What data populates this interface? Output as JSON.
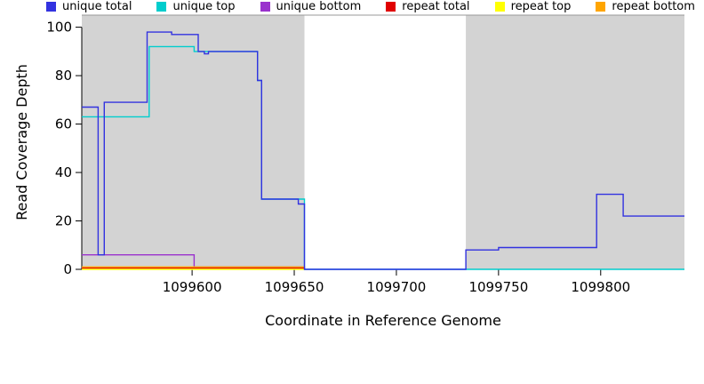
{
  "chart_data": {
    "type": "line",
    "line_style": "step",
    "title": "",
    "xlabel": "Coordinate in Reference Genome",
    "ylabel": "Read Coverage Depth",
    "xlim": [
      1099546,
      1099841
    ],
    "ylim": [
      0,
      105
    ],
    "x_ticks": [
      1099600,
      1099650,
      1099700,
      1099750,
      1099800
    ],
    "y_ticks": [
      0,
      20,
      40,
      60,
      80,
      100
    ],
    "grid": false,
    "background": "#ffffff",
    "panel_top_border_color": "#999999",
    "panel_regions": [
      {
        "from": 1099546,
        "to": 1099655,
        "color": "#d3d3d3"
      },
      {
        "from": 1099734,
        "to": 1099841,
        "color": "#d3d3d3"
      }
    ],
    "gap_region": {
      "from": 1099655,
      "to": 1099734,
      "color": "#ffffff"
    },
    "series": [
      {
        "name": "unique top",
        "color": "#00CDCD",
        "points": [
          [
            1099546,
            63
          ],
          [
            1099579,
            63
          ],
          [
            1099579,
            92
          ],
          [
            1099601,
            92
          ],
          [
            1099601,
            90
          ],
          [
            1099632,
            90
          ],
          [
            1099632,
            78
          ],
          [
            1099634,
            78
          ],
          [
            1099634,
            29
          ],
          [
            1099655,
            29
          ],
          [
            1099655,
            0
          ],
          [
            1099841,
            0
          ]
        ]
      },
      {
        "name": "unique bottom",
        "color": "#9A32CD",
        "points": [
          [
            1099546,
            6
          ],
          [
            1099601,
            6
          ],
          [
            1099601,
            1
          ],
          [
            1099655,
            1
          ],
          [
            1099655,
            0
          ]
        ]
      },
      {
        "name": "repeat total",
        "color": "#E00000",
        "points": [
          [
            1099546,
            0.5
          ],
          [
            1099655,
            0.5
          ]
        ]
      },
      {
        "name": "repeat top",
        "color": "#FFFF00",
        "points": [
          [
            1099546,
            0
          ],
          [
            1099655,
            0
          ]
        ]
      },
      {
        "name": "repeat bottom",
        "color": "#FFA500",
        "points": [
          [
            1099546,
            1
          ],
          [
            1099655,
            1
          ]
        ]
      },
      {
        "name": "unique total",
        "color": "#3232E0",
        "points": [
          [
            1099546,
            67
          ],
          [
            1099554,
            67
          ],
          [
            1099554,
            6
          ],
          [
            1099557,
            6
          ],
          [
            1099557,
            69
          ],
          [
            1099578,
            69
          ],
          [
            1099578,
            98
          ],
          [
            1099590,
            98
          ],
          [
            1099590,
            97
          ],
          [
            1099603,
            97
          ],
          [
            1099603,
            90
          ],
          [
            1099606,
            90
          ],
          [
            1099606,
            89
          ],
          [
            1099608,
            89
          ],
          [
            1099608,
            90
          ],
          [
            1099632,
            90
          ],
          [
            1099632,
            78
          ],
          [
            1099634,
            78
          ],
          [
            1099634,
            29
          ],
          [
            1099652,
            29
          ],
          [
            1099652,
            27
          ],
          [
            1099655,
            27
          ],
          [
            1099655,
            0
          ],
          [
            1099734,
            0
          ],
          [
            1099734,
            8
          ],
          [
            1099750,
            8
          ],
          [
            1099750,
            9
          ],
          [
            1099798,
            9
          ],
          [
            1099798,
            31
          ],
          [
            1099811,
            31
          ],
          [
            1099811,
            22
          ],
          [
            1099841,
            22
          ]
        ]
      }
    ],
    "legend": {
      "position": "bottom",
      "items": [
        {
          "label": "unique total",
          "color": "#3232E0"
        },
        {
          "label": "unique top",
          "color": "#00CDCD"
        },
        {
          "label": "unique bottom",
          "color": "#9A32CD"
        },
        {
          "label": "repeat total",
          "color": "#E00000"
        },
        {
          "label": "repeat top",
          "color": "#FFFF00"
        },
        {
          "label": "repeat bottom",
          "color": "#FFA500"
        }
      ]
    }
  }
}
